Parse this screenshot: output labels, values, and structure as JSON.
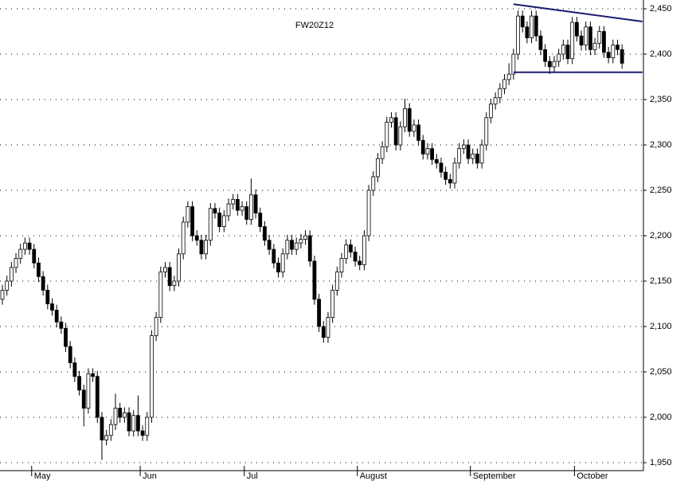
{
  "chart_data": {
    "type": "candlestick",
    "title": "FW20Z12",
    "ylim": [
      1950,
      2450
    ],
    "yticks": [
      {
        "value": 1950,
        "label": "1,950"
      },
      {
        "value": 2000,
        "label": "2,000"
      },
      {
        "value": 2050,
        "label": "2,050"
      },
      {
        "value": 2100,
        "label": "2,100"
      },
      {
        "value": 2150,
        "label": "2,150"
      },
      {
        "value": 2200,
        "label": "2,200"
      },
      {
        "value": 2250,
        "label": "2,250"
      },
      {
        "value": 2300,
        "label": "2,300"
      },
      {
        "value": 2350,
        "label": "2,350"
      },
      {
        "value": 2400,
        "label": "2,400"
      },
      {
        "value": 2450,
        "label": "2,450"
      }
    ],
    "grid": true,
    "up_color": "#ffffff",
    "down_color": "#000000",
    "trend_color": "#1a1a6e",
    "categories": [
      null,
      null,
      null,
      null,
      null,
      null,
      null,
      "May",
      null,
      null,
      null,
      null,
      null,
      null,
      null,
      null,
      null,
      null,
      null,
      null,
      null,
      null,
      null,
      null,
      null,
      null,
      null,
      null,
      null,
      null,
      null,
      "Jun",
      null,
      null,
      null,
      null,
      null,
      null,
      null,
      null,
      null,
      null,
      null,
      null,
      null,
      null,
      null,
      null,
      null,
      null,
      null,
      null,
      null,
      null,
      "Jul",
      null,
      null,
      null,
      null,
      null,
      null,
      null,
      null,
      null,
      null,
      null,
      null,
      null,
      null,
      null,
      null,
      null,
      null,
      null,
      null,
      null,
      null,
      null,
      null,
      "August",
      null,
      null,
      null,
      null,
      null,
      null,
      null,
      null,
      null,
      null,
      null,
      null,
      null,
      null,
      null,
      null,
      null,
      null,
      null,
      null,
      null,
      null,
      null,
      null,
      "September",
      null,
      null,
      null,
      null,
      null,
      null,
      null,
      null,
      null,
      null,
      null,
      null,
      null,
      null,
      null,
      null,
      null,
      null,
      null,
      null,
      null,
      null,
      "October",
      null,
      null,
      null,
      null,
      null,
      null,
      null,
      null,
      null,
      null
    ],
    "ohlc": [
      [
        2130,
        2146,
        2124,
        2140
      ],
      [
        2140,
        2156,
        2134,
        2150
      ],
      [
        2150,
        2171,
        2144,
        2165
      ],
      [
        2165,
        2181,
        2159,
        2175
      ],
      [
        2175,
        2191,
        2169,
        2185
      ],
      [
        2185,
        2198,
        2179,
        2192
      ],
      [
        2192,
        2198,
        2179,
        2185
      ],
      [
        2185,
        2191,
        2164,
        2170
      ],
      [
        2170,
        2176,
        2149,
        2155
      ],
      [
        2155,
        2161,
        2134,
        2140
      ],
      [
        2140,
        2146,
        2119,
        2125
      ],
      [
        2125,
        2131,
        2112,
        2118
      ],
      [
        2118,
        2124,
        2099,
        2105
      ],
      [
        2105,
        2111,
        2092,
        2098
      ],
      [
        2098,
        2104,
        2072,
        2078
      ],
      [
        2078,
        2084,
        2054,
        2060
      ],
      [
        2060,
        2066,
        2039,
        2045
      ],
      [
        2045,
        2051,
        2024,
        2030
      ],
      [
        2030,
        2036,
        1990,
        2010
      ],
      [
        2010,
        2054,
        2004,
        2048
      ],
      [
        2048,
        2054,
        2039,
        2045
      ],
      [
        2045,
        2051,
        1994,
        2000
      ],
      [
        2000,
        2006,
        1953,
        1975
      ],
      [
        1975,
        1986,
        1969,
        1980
      ],
      [
        1980,
        1998,
        1974,
        1992
      ],
      [
        1992,
        2026,
        1986,
        2010
      ],
      [
        2010,
        2016,
        1994,
        2000
      ],
      [
        2000,
        2011,
        1994,
        2005
      ],
      [
        2005,
        2011,
        1979,
        1985
      ],
      [
        1985,
        2008,
        1979,
        2002
      ],
      [
        2002,
        2024,
        1979,
        1985
      ],
      [
        1985,
        1991,
        1974,
        1980
      ],
      [
        1980,
        2006,
        1974,
        2000
      ],
      [
        2000,
        2096,
        1994,
        2090
      ],
      [
        2090,
        2116,
        2084,
        2110
      ],
      [
        2110,
        2166,
        2104,
        2160
      ],
      [
        2160,
        2171,
        2154,
        2165
      ],
      [
        2165,
        2171,
        2139,
        2145
      ],
      [
        2145,
        2156,
        2139,
        2150
      ],
      [
        2150,
        2186,
        2144,
        2180
      ],
      [
        2180,
        2221,
        2174,
        2215
      ],
      [
        2215,
        2238,
        2209,
        2232
      ],
      [
        2232,
        2238,
        2194,
        2200
      ],
      [
        2200,
        2206,
        2189,
        2195
      ],
      [
        2195,
        2201,
        2174,
        2180
      ],
      [
        2180,
        2201,
        2174,
        2195
      ],
      [
        2195,
        2236,
        2189,
        2230
      ],
      [
        2230,
        2236,
        2219,
        2225
      ],
      [
        2225,
        2231,
        2204,
        2210
      ],
      [
        2210,
        2228,
        2204,
        2222
      ],
      [
        2222,
        2241,
        2216,
        2235
      ],
      [
        2235,
        2246,
        2229,
        2240
      ],
      [
        2240,
        2246,
        2222,
        2228
      ],
      [
        2228,
        2238,
        2222,
        2232
      ],
      [
        2232,
        2238,
        2212,
        2218
      ],
      [
        2218,
        2263,
        2212,
        2245
      ],
      [
        2245,
        2251,
        2219,
        2225
      ],
      [
        2225,
        2231,
        2204,
        2210
      ],
      [
        2210,
        2216,
        2189,
        2195
      ],
      [
        2195,
        2201,
        2179,
        2185
      ],
      [
        2185,
        2191,
        2164,
        2170
      ],
      [
        2170,
        2176,
        2154,
        2160
      ],
      [
        2160,
        2186,
        2154,
        2180
      ],
      [
        2180,
        2201,
        2174,
        2195
      ],
      [
        2195,
        2201,
        2179,
        2185
      ],
      [
        2185,
        2198,
        2179,
        2192
      ],
      [
        2192,
        2202,
        2186,
        2196
      ],
      [
        2196,
        2206,
        2190,
        2200
      ],
      [
        2200,
        2206,
        2166,
        2172
      ],
      [
        2172,
        2178,
        2124,
        2130
      ],
      [
        2130,
        2136,
        2094,
        2100
      ],
      [
        2100,
        2106,
        2082,
        2088
      ],
      [
        2088,
        2116,
        2082,
        2110
      ],
      [
        2110,
        2146,
        2104,
        2140
      ],
      [
        2140,
        2166,
        2134,
        2160
      ],
      [
        2160,
        2181,
        2154,
        2175
      ],
      [
        2175,
        2196,
        2169,
        2190
      ],
      [
        2190,
        2196,
        2176,
        2182
      ],
      [
        2182,
        2188,
        2166,
        2172
      ],
      [
        2172,
        2178,
        2162,
        2168
      ],
      [
        2168,
        2206,
        2162,
        2200
      ],
      [
        2200,
        2256,
        2194,
        2250
      ],
      [
        2250,
        2271,
        2244,
        2265
      ],
      [
        2265,
        2291,
        2259,
        2285
      ],
      [
        2285,
        2304,
        2279,
        2298
      ],
      [
        2298,
        2331,
        2292,
        2325
      ],
      [
        2325,
        2336,
        2319,
        2330
      ],
      [
        2330,
        2336,
        2294,
        2300
      ],
      [
        2300,
        2326,
        2294,
        2320
      ],
      [
        2320,
        2351,
        2314,
        2340
      ],
      [
        2340,
        2346,
        2309,
        2315
      ],
      [
        2315,
        2328,
        2309,
        2322
      ],
      [
        2322,
        2328,
        2299,
        2305
      ],
      [
        2305,
        2311,
        2284,
        2290
      ],
      [
        2290,
        2302,
        2284,
        2296
      ],
      [
        2296,
        2302,
        2278,
        2284
      ],
      [
        2284,
        2290,
        2274,
        2280
      ],
      [
        2280,
        2286,
        2264,
        2270
      ],
      [
        2270,
        2276,
        2256,
        2262
      ],
      [
        2262,
        2268,
        2252,
        2258
      ],
      [
        2258,
        2286,
        2252,
        2280
      ],
      [
        2280,
        2302,
        2274,
        2296
      ],
      [
        2296,
        2306,
        2290,
        2300
      ],
      [
        2300,
        2306,
        2279,
        2285
      ],
      [
        2285,
        2296,
        2279,
        2290
      ],
      [
        2290,
        2296,
        2274,
        2280
      ],
      [
        2280,
        2306,
        2274,
        2300
      ],
      [
        2300,
        2336,
        2294,
        2330
      ],
      [
        2330,
        2351,
        2324,
        2345
      ],
      [
        2345,
        2358,
        2339,
        2352
      ],
      [
        2352,
        2368,
        2346,
        2362
      ],
      [
        2362,
        2378,
        2356,
        2372
      ],
      [
        2372,
        2390,
        2366,
        2378
      ],
      [
        2378,
        2406,
        2372,
        2400
      ],
      [
        2400,
        2448,
        2394,
        2442
      ],
      [
        2442,
        2448,
        2424,
        2430
      ],
      [
        2430,
        2436,
        2412,
        2418
      ],
      [
        2418,
        2448,
        2412,
        2442
      ],
      [
        2442,
        2448,
        2414,
        2420
      ],
      [
        2420,
        2426,
        2399,
        2405
      ],
      [
        2405,
        2411,
        2386,
        2392
      ],
      [
        2392,
        2398,
        2378,
        2386
      ],
      [
        2386,
        2398,
        2380,
        2392
      ],
      [
        2392,
        2406,
        2386,
        2400
      ],
      [
        2400,
        2416,
        2394,
        2410
      ],
      [
        2410,
        2416,
        2389,
        2395
      ],
      [
        2395,
        2441,
        2389,
        2435
      ],
      [
        2435,
        2441,
        2414,
        2420
      ],
      [
        2420,
        2426,
        2404,
        2410
      ],
      [
        2410,
        2436,
        2404,
        2430
      ],
      [
        2430,
        2436,
        2399,
        2405
      ],
      [
        2405,
        2418,
        2399,
        2412
      ],
      [
        2412,
        2431,
        2406,
        2425
      ],
      [
        2425,
        2431,
        2396,
        2402
      ],
      [
        2402,
        2408,
        2390,
        2396
      ],
      [
        2396,
        2416,
        2390,
        2410
      ],
      [
        2410,
        2416,
        2399,
        2405
      ],
      [
        2405,
        2411,
        2384,
        2390
      ]
    ],
    "trendlines": [
      {
        "from": [
          113,
          2455
        ],
        "to": [
          141.5,
          2436
        ]
      },
      {
        "from": [
          113,
          2380
        ],
        "to": [
          141.5,
          2380
        ]
      }
    ]
  }
}
